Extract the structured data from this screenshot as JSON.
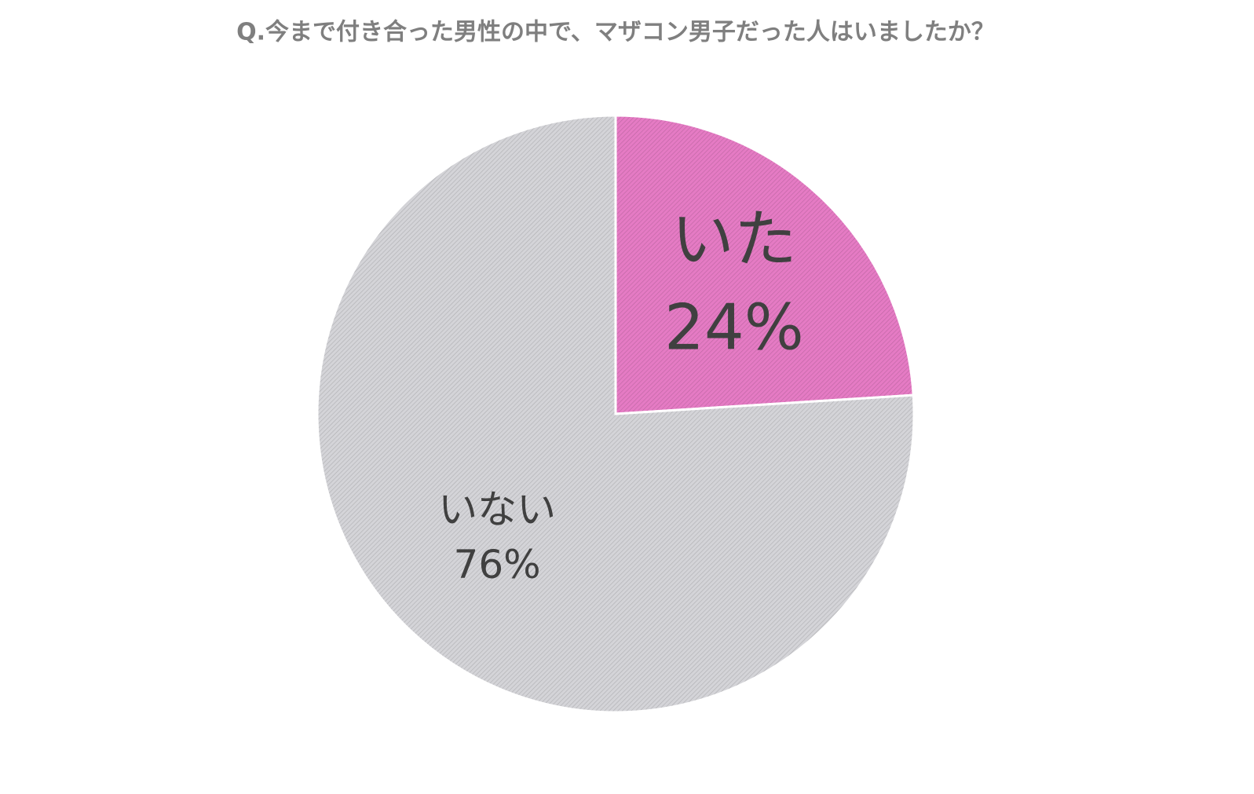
{
  "chart_data": {
    "type": "pie",
    "title": "Q.今まで付き合った男性の中で、マザコン男子だった人はいましたか？",
    "categories": [
      "いた",
      "いない"
    ],
    "values": [
      24,
      76
    ],
    "value_labels": [
      "24%",
      "76%"
    ],
    "colors": [
      "#e57bc4",
      "#d4d4d8"
    ]
  }
}
